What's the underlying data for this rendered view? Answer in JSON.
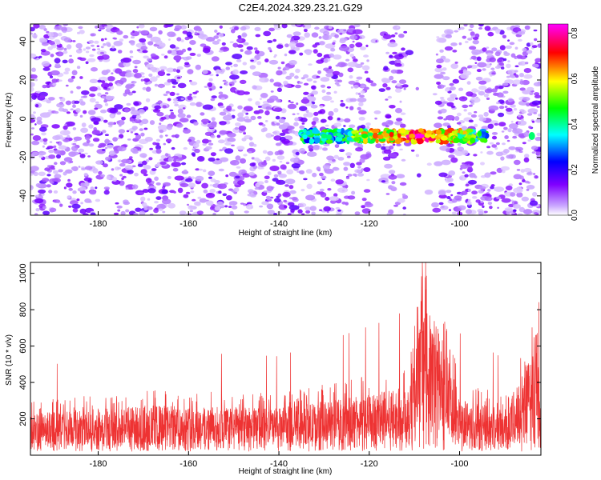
{
  "title": "C2E4.2024.329.23.21.G29",
  "chart_data": [
    {
      "type": "heatmap",
      "xlabel": "Height of straight line (km)",
      "ylabel": "Frequency (Hz)",
      "xlim": [
        -195,
        -82
      ],
      "ylim": [
        -50,
        49
      ],
      "xticks": [
        -180,
        -160,
        -140,
        -120,
        -100
      ],
      "yticks": [
        -40,
        -20,
        0,
        20,
        40
      ],
      "colorbar": {
        "label": "Normalized spectral amplitude",
        "range": [
          0,
          0.84
        ],
        "ticks": [
          0.0,
          0.2,
          0.4,
          0.6,
          0.8
        ],
        "colors": [
          "#ffffff",
          "#8000ff",
          "#0000ff",
          "#00ffff",
          "#00ff00",
          "#ffff00",
          "#ff0000",
          "#ff00ff"
        ]
      },
      "band": {
        "frequency_hz": -9,
        "x_start": -135,
        "x_end": -94,
        "peak_x": -109,
        "peak_value": 0.84
      },
      "gaps": [
        [
          -120,
          -117
        ],
        [
          -112,
          -105
        ]
      ]
    },
    {
      "type": "line",
      "xlabel": "Height of straight line (km)",
      "ylabel": "SNR (10 * v/v)",
      "xlim": [
        -195,
        -82
      ],
      "ylim": [
        0,
        1060
      ],
      "xticks": [
        -180,
        -160,
        -140,
        -120,
        -100
      ],
      "yticks": [
        200,
        400,
        600,
        800,
        1000
      ],
      "color": "#ee3333",
      "baseline": 150,
      "noise_envelope": [
        {
          "x": -195,
          "high": 300
        },
        {
          "x": -170,
          "high": 360
        },
        {
          "x": -140,
          "high": 340
        },
        {
          "x": -130,
          "high": 390
        },
        {
          "x": -115,
          "high": 470
        },
        {
          "x": -112,
          "high": 500
        },
        {
          "x": -108,
          "high": 1050
        },
        {
          "x": -105,
          "high": 1000
        },
        {
          "x": -100,
          "high": 420
        },
        {
          "x": -90,
          "high": 330
        },
        {
          "x": -83,
          "high": 820
        },
        {
          "x": -82,
          "high": 300
        }
      ]
    }
  ]
}
